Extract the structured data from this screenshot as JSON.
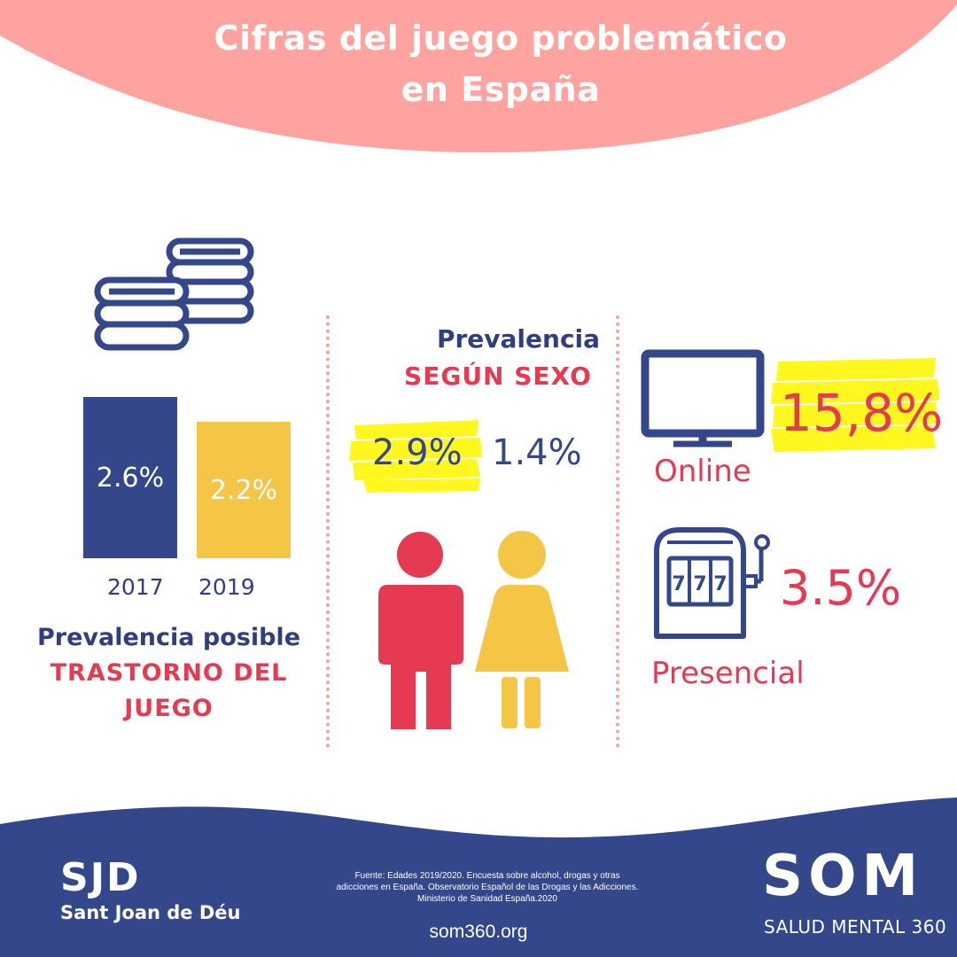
{
  "header": {
    "title_line1": "Cifras del juego problemático",
    "title_line2": "en España"
  },
  "colors": {
    "navy": "#33478a",
    "yellow": "#f5c545",
    "red": "#e63a52",
    "pink": "#ffa3a0",
    "highlight": "#fff71e"
  },
  "chart_data": [
    {
      "type": "bar",
      "categories": [
        "2017",
        "2019"
      ],
      "values": [
        2.6,
        2.2
      ],
      "value_labels": [
        "2.6%",
        "2.2%"
      ],
      "title": "",
      "caption": [
        "Prevalencia posible",
        "TRASTORNO DEL",
        "JUEGO"
      ],
      "colors": [
        "#33478a",
        "#f5c545"
      ]
    }
  ],
  "left_panel": {
    "icon": "coins-stack-icon",
    "caption_line1": "Prevalencia posible",
    "caption_line2": "TRASTORNO DEL",
    "caption_line3": "JUEGO"
  },
  "middle_panel": {
    "heading_line1": "Prevalencia",
    "heading_line2": "SEGÚN SEXO",
    "male_value": "2.9%",
    "female_value": "1.4%",
    "icons": [
      "man-icon",
      "woman-icon"
    ]
  },
  "right_panel": {
    "online_value": "15,8%",
    "online_label": "Online",
    "online_icon": "monitor-icon",
    "presencial_value": "3.5%",
    "presencial_label": "Presencial",
    "presencial_icon": "slot-machine-icon",
    "slot_text": "777"
  },
  "footer": {
    "sjd_mark": "SJD",
    "sjd_name": "Sant Joan de Déu",
    "source_line1": "Fuente: Edades 2019/2020. Encuesta sobre alcohol, drogas y otras",
    "source_line2": "adicciones en España. Observatorio Español de las Drogas y las Adicciones.",
    "source_line3": "Ministerio de Sanidad España.2020",
    "site": "som360.org",
    "som_mark": "SOM",
    "som_sub": "SALUD MENTAL 360"
  }
}
